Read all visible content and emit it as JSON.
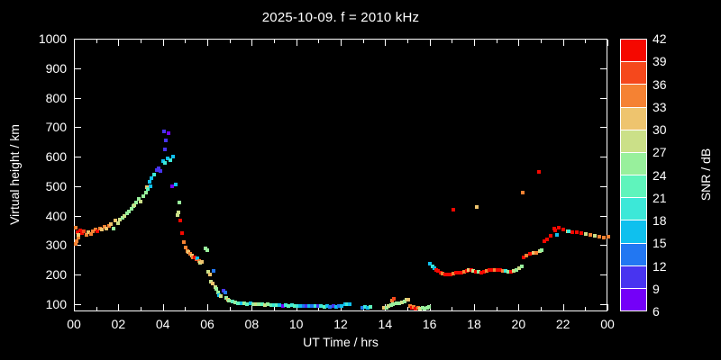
{
  "title": "2025-10-09. f = 2010 kHz",
  "axes": {
    "x": {
      "label": "UT Time / hrs",
      "min": 0,
      "max": 24,
      "major_step_hours": 2,
      "minor_step_hours": 1,
      "tick_labels": [
        "00",
        "02",
        "04",
        "06",
        "08",
        "10",
        "12",
        "14",
        "16",
        "18",
        "20",
        "22",
        "00"
      ]
    },
    "y": {
      "label": "Virtual height / km",
      "min": 75,
      "max": 1000,
      "major_ticks": [
        100,
        200,
        300,
        400,
        500,
        600,
        700,
        800,
        900,
        1000
      ],
      "tick_labels": [
        "100",
        "200",
        "300",
        "400",
        "500",
        "600",
        "700",
        "800",
        "900",
        "1000"
      ]
    }
  },
  "colorbar": {
    "label": "SNR / dB",
    "min": 6,
    "max": 42,
    "tick_labels": [
      "42",
      "39",
      "36",
      "33",
      "30",
      "27",
      "24",
      "21",
      "18",
      "15",
      "12",
      "9",
      "6"
    ],
    "segments": [
      {
        "from": 39,
        "to": 42,
        "color": "#f50800"
      },
      {
        "from": 36,
        "to": 39,
        "color": "#f5481c"
      },
      {
        "from": 33,
        "to": 36,
        "color": "#f58233"
      },
      {
        "from": 30,
        "to": 33,
        "color": "#eec46e"
      },
      {
        "from": 27,
        "to": 30,
        "color": "#cbe088"
      },
      {
        "from": 24,
        "to": 27,
        "color": "#98f09c"
      },
      {
        "from": 21,
        "to": 24,
        "color": "#5ff4bc"
      },
      {
        "from": 18,
        "to": 21,
        "color": "#3ce8d8"
      },
      {
        "from": 15,
        "to": 18,
        "color": "#0fc0ee"
      },
      {
        "from": 12,
        "to": 15,
        "color": "#2277f2"
      },
      {
        "from": 9,
        "to": 12,
        "color": "#4834f0"
      },
      {
        "from": 6,
        "to": 9,
        "color": "#7400f8"
      }
    ]
  },
  "chart_data": {
    "type": "scatter",
    "title": "2025-10-09. f = 2010 kHz",
    "xlabel": "UT Time / hrs",
    "ylabel": "Virtual height / km",
    "colorbar_label": "SNR / dB",
    "xlim": [
      0,
      24
    ],
    "ylim": [
      75,
      1000
    ],
    "snr_range": [
      6,
      42
    ],
    "grid": false,
    "point_format": [
      "ut_hours",
      "virtual_height_km",
      "snr_db"
    ],
    "points": [
      [
        0.02,
        306,
        34.5
      ],
      [
        0.05,
        363,
        34.5
      ],
      [
        0.08,
        315,
        34.5
      ],
      [
        0.12,
        348,
        40.5
      ],
      [
        0.15,
        327,
        34.5
      ],
      [
        0.18,
        337,
        31.5
      ],
      [
        0.24,
        354,
        40.5
      ],
      [
        0.31,
        345,
        40.5
      ],
      [
        0.4,
        349,
        37.5
      ],
      [
        0.51,
        339,
        34.5
      ],
      [
        0.61,
        348,
        31.5
      ],
      [
        0.72,
        342,
        34.5
      ],
      [
        0.81,
        349,
        34.5
      ],
      [
        0.92,
        357,
        34.5
      ],
      [
        1.03,
        351,
        40.5
      ],
      [
        1.12,
        360,
        34.5
      ],
      [
        1.22,
        357,
        31.5
      ],
      [
        1.33,
        364,
        34.5
      ],
      [
        1.43,
        360,
        31.5
      ],
      [
        1.53,
        369,
        34.5
      ],
      [
        1.63,
        375,
        31.5
      ],
      [
        1.73,
        360,
        25.5
      ],
      [
        1.84,
        385,
        31.5
      ],
      [
        1.93,
        376,
        28.5
      ],
      [
        2.04,
        390,
        28.5
      ],
      [
        2.14,
        397,
        25.5
      ],
      [
        2.24,
        403,
        28.5
      ],
      [
        2.35,
        410,
        25.5
      ],
      [
        2.44,
        418,
        25.5
      ],
      [
        2.55,
        425,
        25.5
      ],
      [
        2.62,
        434,
        25.5
      ],
      [
        2.66,
        437,
        28.5
      ],
      [
        2.76,
        446,
        25.5
      ],
      [
        2.89,
        459,
        25.5
      ],
      [
        2.96,
        452,
        28.5
      ],
      [
        3.07,
        470,
        25.5
      ],
      [
        3.2,
        480,
        25.5
      ],
      [
        3.25,
        500,
        31.5
      ],
      [
        3.3,
        492,
        22.5
      ],
      [
        3.35,
        517,
        16.5
      ],
      [
        3.39,
        502,
        16.5
      ],
      [
        3.44,
        531,
        16.5
      ],
      [
        3.57,
        543,
        19.5
      ],
      [
        3.7,
        558,
        10.5
      ],
      [
        3.75,
        564,
        10.5
      ],
      [
        3.84,
        555,
        10.5
      ],
      [
        3.98,
        588,
        16.5
      ],
      [
        4.02,
        689,
        10.5
      ],
      [
        4.04,
        628,
        10.5
      ],
      [
        4.07,
        582,
        19.5
      ],
      [
        4.11,
        659,
        10.5
      ],
      [
        4.18,
        597,
        16.5
      ],
      [
        4.21,
        684,
        7.5
      ],
      [
        4.31,
        592,
        19.5
      ],
      [
        4.38,
        502,
        7.5
      ],
      [
        4.42,
        604,
        16.5
      ],
      [
        4.56,
        510,
        16.5
      ],
      [
        4.62,
        406,
        28.5
      ],
      [
        4.65,
        415,
        28.5
      ],
      [
        4.7,
        446,
        25.5
      ],
      [
        4.74,
        385,
        40.5
      ],
      [
        4.83,
        345,
        40.5
      ],
      [
        4.92,
        314,
        34.5
      ],
      [
        4.99,
        296,
        34.5
      ],
      [
        5.06,
        284,
        34.5
      ],
      [
        5.12,
        281,
        31.5
      ],
      [
        5.19,
        272,
        34.5
      ],
      [
        5.26,
        268,
        31.5
      ],
      [
        5.33,
        262,
        34.5
      ],
      [
        5.39,
        260,
        40.5
      ],
      [
        5.46,
        254,
        37.5
      ],
      [
        5.53,
        257,
        16.5
      ],
      [
        5.6,
        250,
        34.5
      ],
      [
        5.64,
        242,
        28.5
      ],
      [
        5.73,
        247,
        31.5
      ],
      [
        5.87,
        291,
        25.5
      ],
      [
        5.94,
        285,
        25.5
      ],
      [
        6.0,
        211,
        28.5
      ],
      [
        6.07,
        204,
        31.5
      ],
      [
        6.14,
        180,
        28.5
      ],
      [
        6.21,
        173,
        31.5
      ],
      [
        6.25,
        216,
        13.5
      ],
      [
        6.32,
        162,
        28.5
      ],
      [
        6.38,
        155,
        25.5
      ],
      [
        6.44,
        143,
        25.5
      ],
      [
        6.48,
        134,
        16.5
      ],
      [
        6.58,
        130,
        28.5
      ],
      [
        6.68,
        148,
        10.5
      ],
      [
        6.75,
        142,
        13.5
      ],
      [
        6.81,
        124,
        25.5
      ],
      [
        6.88,
        119,
        31.5
      ],
      [
        6.95,
        115,
        25.5
      ],
      [
        7.08,
        112,
        22.5
      ],
      [
        7.22,
        109,
        25.5
      ],
      [
        7.35,
        106,
        22.5
      ],
      [
        7.49,
        106,
        16.5
      ],
      [
        7.62,
        107,
        25.5
      ],
      [
        7.75,
        104,
        22.5
      ],
      [
        7.89,
        106,
        16.5
      ],
      [
        8.02,
        103,
        25.5
      ],
      [
        8.15,
        104,
        28.5
      ],
      [
        8.28,
        101,
        25.5
      ],
      [
        8.42,
        103,
        22.5
      ],
      [
        8.55,
        100,
        28.5
      ],
      [
        8.68,
        101,
        25.5
      ],
      [
        8.82,
        99,
        22.5
      ],
      [
        8.95,
        100,
        19.5
      ],
      [
        9.08,
        98,
        22.5
      ],
      [
        9.22,
        99,
        16.5
      ],
      [
        9.35,
        97,
        7.5
      ],
      [
        9.48,
        98,
        19.5
      ],
      [
        9.62,
        97,
        22.5
      ],
      [
        9.75,
        98,
        19.5
      ],
      [
        9.88,
        96,
        22.5
      ],
      [
        10.02,
        97,
        19.5
      ],
      [
        10.15,
        96,
        16.5
      ],
      [
        10.28,
        97,
        13.5
      ],
      [
        10.42,
        96,
        10.5
      ],
      [
        10.55,
        95,
        16.5
      ],
      [
        10.68,
        96,
        13.5
      ],
      [
        10.82,
        95,
        19.5
      ],
      [
        10.95,
        96,
        10.5
      ],
      [
        11.08,
        95,
        19.5
      ],
      [
        11.22,
        94,
        22.5
      ],
      [
        11.35,
        95,
        16.5
      ],
      [
        11.48,
        94,
        13.5
      ],
      [
        11.62,
        95,
        10.5
      ],
      [
        11.75,
        94,
        16.5
      ],
      [
        11.88,
        95,
        13.5
      ],
      [
        12.02,
        96,
        16.5
      ],
      [
        12.15,
        104,
        16.5
      ],
      [
        12.25,
        103,
        19.5
      ],
      [
        12.38,
        101,
        16.5
      ],
      [
        12.92,
        91,
        13.5
      ],
      [
        13.05,
        92,
        19.5
      ],
      [
        13.18,
        91,
        16.5
      ],
      [
        13.31,
        92,
        22.5
      ],
      [
        13.92,
        89,
        31.5
      ],
      [
        14.02,
        91,
        25.5
      ],
      [
        14.12,
        97,
        28.5
      ],
      [
        14.22,
        100,
        25.5
      ],
      [
        14.28,
        116,
        34.5
      ],
      [
        14.32,
        102,
        25.5
      ],
      [
        14.36,
        120,
        37.5
      ],
      [
        14.46,
        105,
        25.5
      ],
      [
        14.6,
        107,
        25.5
      ],
      [
        14.72,
        109,
        28.5
      ],
      [
        14.84,
        113,
        25.5
      ],
      [
        14.93,
        117,
        28.5
      ],
      [
        15.02,
        119,
        31.5
      ],
      [
        15.1,
        97,
        34.5
      ],
      [
        15.16,
        89,
        40.5
      ],
      [
        15.24,
        92,
        34.5
      ],
      [
        15.33,
        87,
        40.5
      ],
      [
        15.43,
        89,
        34.5
      ],
      [
        15.54,
        87,
        28.5
      ],
      [
        15.64,
        89,
        25.5
      ],
      [
        15.73,
        87,
        25.5
      ],
      [
        15.84,
        89,
        25.5
      ],
      [
        15.93,
        92,
        25.5
      ],
      [
        15.98,
        241,
        16.5
      ],
      [
        16.1,
        232,
        19.5
      ],
      [
        16.19,
        226,
        16.5
      ],
      [
        16.27,
        220,
        40.5
      ],
      [
        16.35,
        214,
        40.5
      ],
      [
        16.44,
        210,
        40.5
      ],
      [
        16.55,
        206,
        34.5
      ],
      [
        16.66,
        204,
        40.5
      ],
      [
        16.77,
        202,
        40.5
      ],
      [
        16.89,
        204,
        40.5
      ],
      [
        17.01,
        206,
        34.5
      ],
      [
        17.02,
        422,
        40.5
      ],
      [
        17.13,
        208,
        40.5
      ],
      [
        17.25,
        208,
        40.5
      ],
      [
        17.38,
        210,
        40.5
      ],
      [
        17.5,
        212,
        34.5
      ],
      [
        17.62,
        216,
        40.5
      ],
      [
        17.73,
        220,
        31.5
      ],
      [
        17.82,
        218,
        40.5
      ],
      [
        17.93,
        214,
        28.5
      ],
      [
        18.04,
        212,
        40.5
      ],
      [
        18.1,
        432,
        31.5
      ],
      [
        18.15,
        212,
        25.5
      ],
      [
        18.27,
        210,
        40.5
      ],
      [
        18.39,
        212,
        40.5
      ],
      [
        18.51,
        214,
        34.5
      ],
      [
        18.63,
        218,
        40.5
      ],
      [
        18.76,
        220,
        40.5
      ],
      [
        18.88,
        220,
        34.5
      ],
      [
        19.0,
        220,
        40.5
      ],
      [
        19.12,
        218,
        40.5
      ],
      [
        19.24,
        216,
        34.5
      ],
      [
        19.37,
        214,
        19.5
      ],
      [
        19.49,
        212,
        25.5
      ],
      [
        19.61,
        212,
        40.5
      ],
      [
        19.73,
        214,
        28.5
      ],
      [
        19.85,
        218,
        25.5
      ],
      [
        19.97,
        224,
        28.5
      ],
      [
        20.09,
        232,
        25.5
      ],
      [
        20.15,
        481,
        34.5
      ],
      [
        20.2,
        260,
        40.5
      ],
      [
        20.33,
        266,
        34.5
      ],
      [
        20.48,
        272,
        40.5
      ],
      [
        20.62,
        278,
        31.5
      ],
      [
        20.77,
        275,
        34.5
      ],
      [
        20.87,
        550,
        40.5
      ],
      [
        20.9,
        284,
        28.5
      ],
      [
        21.02,
        287,
        25.5
      ],
      [
        21.12,
        316,
        40.5
      ],
      [
        21.25,
        323,
        40.5
      ],
      [
        21.4,
        333,
        40.5
      ],
      [
        21.56,
        360,
        40.5
      ],
      [
        21.6,
        354,
        40.5
      ],
      [
        21.69,
        337,
        16.5
      ],
      [
        21.76,
        363,
        40.5
      ],
      [
        21.96,
        356,
        40.5
      ],
      [
        22.16,
        350,
        31.5
      ],
      [
        22.23,
        351,
        19.5
      ],
      [
        22.37,
        347,
        40.5
      ],
      [
        22.57,
        347,
        40.5
      ],
      [
        22.77,
        344,
        40.5
      ],
      [
        22.97,
        341,
        28.5
      ],
      [
        23.18,
        339,
        34.5
      ],
      [
        23.38,
        336,
        28.5
      ],
      [
        23.58,
        331,
        34.5
      ],
      [
        23.78,
        328,
        34.5
      ],
      [
        23.99,
        331,
        34.5
      ]
    ]
  }
}
